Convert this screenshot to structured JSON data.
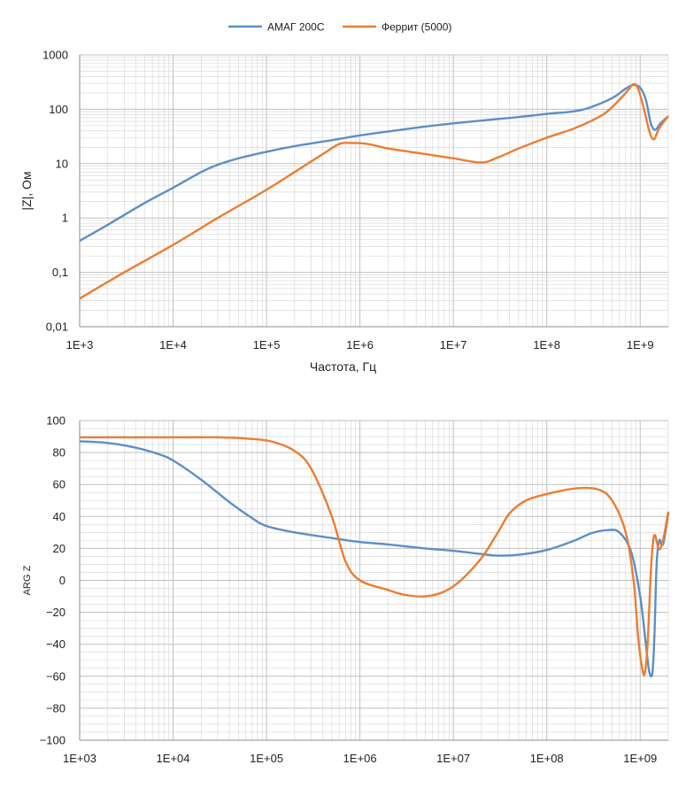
{
  "colors": {
    "series1": "#5b8fc9",
    "series2": "#ed7d31",
    "grid": "#d4d4d4",
    "axis": "#8c8c8c"
  },
  "legend": {
    "items": [
      {
        "label": "АМАГ 200С",
        "color": "#5b8fc9"
      },
      {
        "label": "Феррит (5000)",
        "color": "#ed7d31"
      }
    ]
  },
  "chart_data": [
    {
      "type": "line",
      "title": "",
      "xlabel": "Частота, Гц",
      "ylabel": "|Z|, Ом",
      "x_scale": "log",
      "y_scale": "log",
      "xlim": [
        1000,
        2000000000
      ],
      "ylim": [
        0.01,
        1000
      ],
      "x_ticks": [
        1000,
        10000,
        100000,
        1000000,
        10000000,
        100000000,
        1000000000
      ],
      "x_tick_labels": [
        "1E+3",
        "1E+4",
        "1E+5",
        "1E+6",
        "1E+7",
        "1E+8",
        "1E+9"
      ],
      "y_ticks": [
        0.01,
        0.1,
        1,
        10,
        100,
        1000
      ],
      "y_tick_labels": [
        "0,01",
        "0,1",
        "1",
        "10",
        "100",
        "1000"
      ],
      "grid": true,
      "legend": "top-center",
      "series": [
        {
          "name": "АМАГ 200С",
          "color": "#5b8fc9",
          "points": [
            [
              1000,
              0.38
            ],
            [
              2000,
              0.75
            ],
            [
              5000,
              1.9
            ],
            [
              10000,
              3.6
            ],
            [
              20000,
              7.0
            ],
            [
              30000,
              9.5
            ],
            [
              50000,
              12.5
            ],
            [
              100000,
              16.5
            ],
            [
              200000,
              21
            ],
            [
              500000,
              27
            ],
            [
              1000000,
              33
            ],
            [
              2000000,
              39
            ],
            [
              5000000,
              48
            ],
            [
              10000000,
              55
            ],
            [
              20000000,
              62
            ],
            [
              50000000,
              72
            ],
            [
              100000000,
              82
            ],
            [
              200000000,
              92
            ],
            [
              300000000,
              110
            ],
            [
              500000000,
              160
            ],
            [
              700000000,
              240
            ],
            [
              850000000,
              280
            ],
            [
              1000000000,
              250
            ],
            [
              1150000000,
              150
            ],
            [
              1300000000,
              55
            ],
            [
              1450000000,
              42
            ],
            [
              1650000000,
              55
            ],
            [
              2000000000,
              75
            ]
          ]
        },
        {
          "name": "Феррит (5000)",
          "color": "#ed7d31",
          "points": [
            [
              1000,
              0.033
            ],
            [
              3000,
              0.1
            ],
            [
              10000,
              0.32
            ],
            [
              30000,
              1.0
            ],
            [
              100000,
              3.3
            ],
            [
              200000,
              7
            ],
            [
              400000,
              15
            ],
            [
              600000,
              23
            ],
            [
              800000,
              24
            ],
            [
              1200000,
              23
            ],
            [
              2000000,
              19
            ],
            [
              5000000,
              15
            ],
            [
              10000000,
              12.5
            ],
            [
              20000000,
              10.5
            ],
            [
              30000000,
              13
            ],
            [
              50000000,
              19
            ],
            [
              100000000,
              30
            ],
            [
              200000000,
              45
            ],
            [
              400000000,
              80
            ],
            [
              600000000,
              150
            ],
            [
              750000000,
              230
            ],
            [
              850000000,
              290
            ],
            [
              950000000,
              240
            ],
            [
              1100000000,
              100
            ],
            [
              1250000000,
              40
            ],
            [
              1400000000,
              28
            ],
            [
              1600000000,
              45
            ],
            [
              2000000000,
              75
            ]
          ]
        }
      ]
    },
    {
      "type": "line",
      "title": "",
      "xlabel": "",
      "ylabel": "ARG Z",
      "x_scale": "log",
      "y_scale": "linear",
      "xlim": [
        1000,
        2000000000
      ],
      "ylim": [
        -100,
        100
      ],
      "x_ticks": [
        1000,
        10000,
        100000,
        1000000,
        10000000,
        100000000,
        1000000000
      ],
      "x_tick_labels": [
        "1E+03",
        "1E+04",
        "1E+05",
        "1E+06",
        "1E+07",
        "1E+08",
        "1E+09"
      ],
      "y_ticks": [
        -100,
        -80,
        -60,
        -40,
        -20,
        0,
        20,
        40,
        60,
        80,
        100
      ],
      "y_tick_labels": [
        "−100",
        "−80",
        "−60",
        "−40",
        "−20",
        "0",
        "20",
        "40",
        "60",
        "80",
        "100"
      ],
      "grid": true,
      "series": [
        {
          "name": "АМАГ 200С",
          "color": "#5b8fc9",
          "points": [
            [
              1000,
              87
            ],
            [
              2000,
              86
            ],
            [
              4000,
              83
            ],
            [
              7000,
              79
            ],
            [
              10000,
              75
            ],
            [
              20000,
              63
            ],
            [
              40000,
              49
            ],
            [
              70000,
              39
            ],
            [
              100000,
              34
            ],
            [
              200000,
              30
            ],
            [
              500000,
              26.5
            ],
            [
              1000000,
              24
            ],
            [
              2000000,
              22.5
            ],
            [
              5000000,
              20
            ],
            [
              10000000,
              18.5
            ],
            [
              20000000,
              16.5
            ],
            [
              30000000,
              15.5
            ],
            [
              50000000,
              16
            ],
            [
              100000000,
              19
            ],
            [
              200000000,
              25
            ],
            [
              300000000,
              29.5
            ],
            [
              450000000,
              31.5
            ],
            [
              600000000,
              30
            ],
            [
              800000000,
              18
            ],
            [
              1000000000,
              -10
            ],
            [
              1150000000,
              -40
            ],
            [
              1250000000,
              -57
            ],
            [
              1350000000,
              -58
            ],
            [
              1420000000,
              -35
            ],
            [
              1500000000,
              10
            ],
            [
              1600000000,
              25
            ],
            [
              1700000000,
              22
            ],
            [
              1800000000,
              25
            ],
            [
              2000000000,
              42
            ]
          ]
        },
        {
          "name": "Феррит (5000)",
          "color": "#ed7d31",
          "points": [
            [
              1000,
              89.5
            ],
            [
              10000,
              89.5
            ],
            [
              30000,
              89.5
            ],
            [
              70000,
              88.5
            ],
            [
              120000,
              86.5
            ],
            [
              200000,
              81
            ],
            [
              300000,
              70
            ],
            [
              500000,
              40
            ],
            [
              700000,
              12
            ],
            [
              1000000,
              0
            ],
            [
              2000000,
              -6
            ],
            [
              3000000,
              -9
            ],
            [
              5000000,
              -10
            ],
            [
              8000000,
              -7
            ],
            [
              12000000,
              0
            ],
            [
              20000000,
              14
            ],
            [
              30000000,
              30
            ],
            [
              40000000,
              42
            ],
            [
              60000000,
              50
            ],
            [
              100000000,
              54
            ],
            [
              200000000,
              57.5
            ],
            [
              350000000,
              57
            ],
            [
              500000000,
              50
            ],
            [
              700000000,
              30
            ],
            [
              850000000,
              0
            ],
            [
              950000000,
              -35
            ],
            [
              1050000000,
              -55
            ],
            [
              1120000000,
              -58
            ],
            [
              1200000000,
              -40
            ],
            [
              1300000000,
              5
            ],
            [
              1380000000,
              25
            ],
            [
              1450000000,
              28
            ],
            [
              1550000000,
              21
            ],
            [
              1650000000,
              20
            ],
            [
              1800000000,
              28
            ],
            [
              2000000000,
              43
            ]
          ]
        }
      ]
    }
  ]
}
